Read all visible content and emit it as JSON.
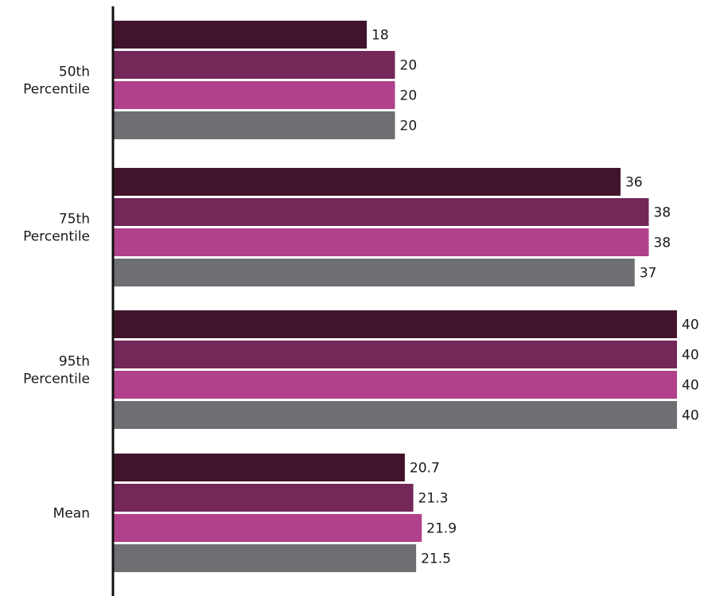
{
  "chart_data": {
    "type": "bar",
    "orientation": "horizontal",
    "categories": [
      [
        "50th",
        "Percentile"
      ],
      [
        "75th",
        "Percentile"
      ],
      [
        "95th",
        "Percentile"
      ],
      [
        "Mean"
      ]
    ],
    "series": [
      {
        "color": "#41142c",
        "values": [
          18,
          36,
          40,
          20.7
        ]
      },
      {
        "color": "#742759",
        "values": [
          20,
          38,
          40,
          21.3
        ]
      },
      {
        "color": "#b0418a",
        "values": [
          20,
          38,
          40,
          21.9
        ]
      },
      {
        "color": "#6e6f72",
        "values": [
          20,
          37,
          40,
          21.5
        ]
      }
    ],
    "value_labels": [
      [
        "18",
        "36",
        "40",
        "20.7"
      ],
      [
        "20",
        "38",
        "40",
        "21.3"
      ],
      [
        "20",
        "38",
        "40",
        "21.9"
      ],
      [
        "20",
        "37",
        "40",
        "21.5"
      ]
    ],
    "xlim": [
      0,
      40
    ],
    "grid": false,
    "legend": "none"
  }
}
